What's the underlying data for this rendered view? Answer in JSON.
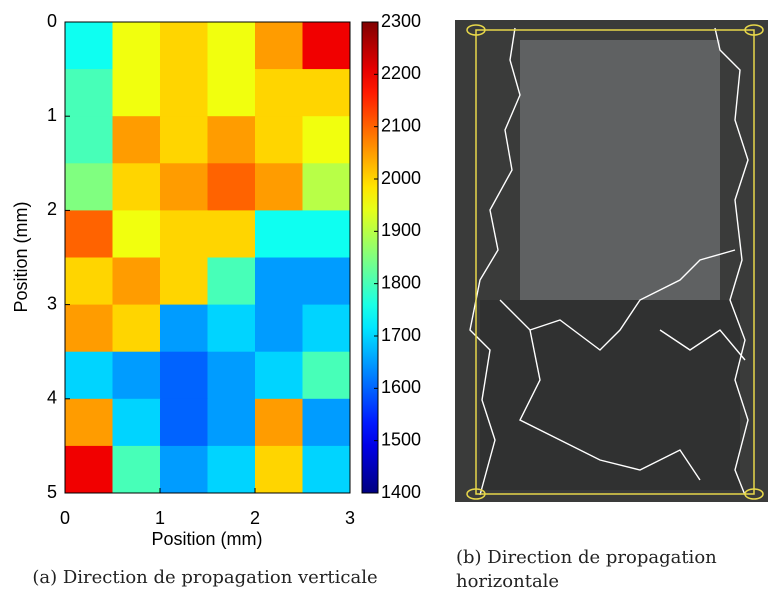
{
  "chart_data": {
    "type": "heatmap",
    "xlabel": "Position (mm)",
    "ylabel": "Position (mm)",
    "xlim": [
      0,
      3
    ],
    "xticks": [
      0,
      1,
      2,
      3
    ],
    "ylim": [
      0,
      5
    ],
    "yticks": [
      0,
      1,
      2,
      3,
      4,
      5
    ],
    "yreverse": true,
    "x": [
      0.25,
      0.75,
      1.25,
      1.75,
      2.25,
      2.75
    ],
    "y": [
      0.25,
      0.75,
      1.25,
      1.75,
      2.25,
      2.75,
      3.25,
      3.75,
      4.25,
      4.75
    ],
    "values": [
      [
        1750,
        1950,
        2000,
        1950,
        2050,
        2200
      ],
      [
        1800,
        1950,
        2000,
        1950,
        2000,
        2000
      ],
      [
        1800,
        2050,
        2000,
        2050,
        2000,
        1950
      ],
      [
        1850,
        2000,
        2050,
        2100,
        2050,
        1900
      ],
      [
        2100,
        1950,
        2000,
        2000,
        1750,
        1750
      ],
      [
        2000,
        2050,
        2000,
        1800,
        1650,
        1650
      ],
      [
        2050,
        2000,
        1650,
        1700,
        1650,
        1700
      ],
      [
        1700,
        1650,
        1600,
        1650,
        1700,
        1800
      ],
      [
        2050,
        1700,
        1600,
        1650,
        2050,
        1650
      ],
      [
        2200,
        1800,
        1650,
        1700,
        2000,
        1700
      ]
    ],
    "colormap": "jet",
    "clim": [
      1400,
      2300
    ],
    "cticks": [
      1400,
      1500,
      1600,
      1700,
      1800,
      1900,
      2000,
      2100,
      2200,
      2300
    ]
  },
  "captions": [
    "(a) Direction de propagation verticale",
    "(b) Direction de propagation horizontale"
  ]
}
